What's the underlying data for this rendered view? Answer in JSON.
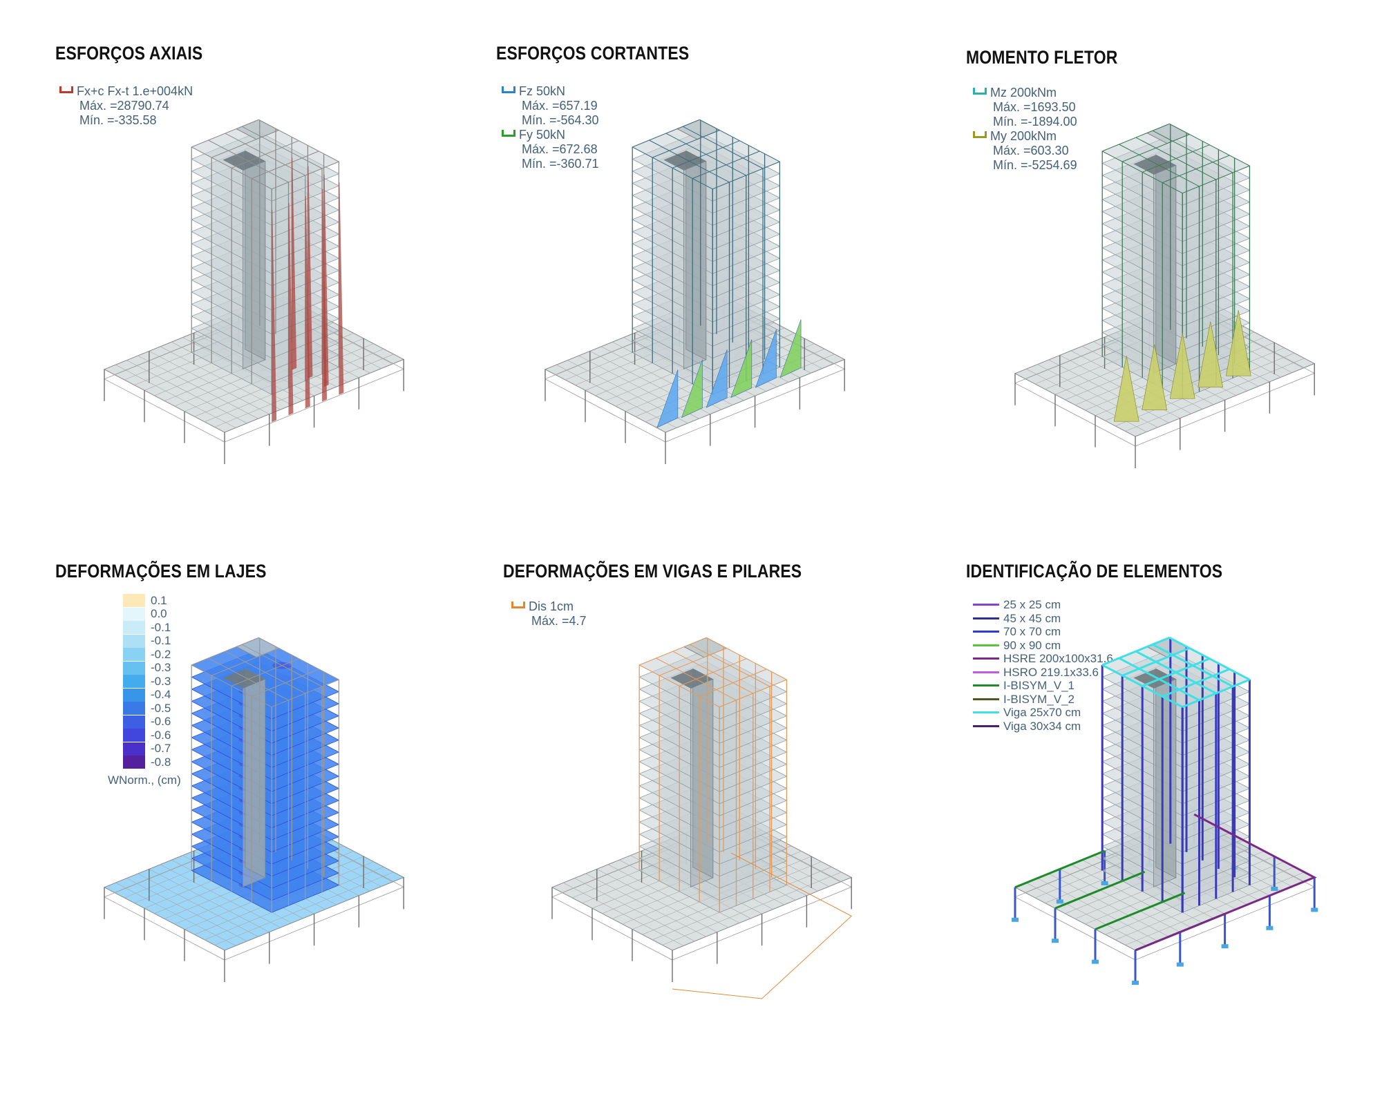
{
  "panels": {
    "axial": {
      "title": "ESFORÇOS AXIAIS",
      "legend": [
        {
          "swatch": "#c0392b",
          "label": "Fx+c Fx-t  1.e+004kN",
          "max": "Máx. =28790.74",
          "min": "Mín. =-335.58"
        }
      ],
      "diagram_color": "#a9443f"
    },
    "shear": {
      "title": "ESFORÇOS CORTANTES",
      "legend": [
        {
          "swatch": "#2d7fd0",
          "label": "Fz  50kN",
          "max": "Máx. =657.19",
          "min": "Mín. =-564.30"
        },
        {
          "swatch": "#2aa02a",
          "label": "Fy  50kN",
          "max": "Máx. =672.68",
          "min": "Mín. =-360.71"
        }
      ],
      "diagram_colors": [
        "#5aa7f0",
        "#7fd05a"
      ]
    },
    "moment": {
      "title": "MOMENTO FLETOR",
      "legend": [
        {
          "swatch": "#2bb0b0",
          "label": "Mz  200kNm",
          "max": "Máx. =1693.50",
          "min": "Mín. =-1894.00"
        },
        {
          "swatch": "#9a9a20",
          "label": "My  200kNm",
          "max": "Máx. =603.30",
          "min": "Mín. =-5254.69"
        }
      ],
      "diagram_colors": [
        "#c9cf6a",
        "#3fd0e0"
      ]
    },
    "slabs": {
      "title": "DEFORMAÇÕES EM LAJES",
      "scale": [
        {
          "value": "0.1",
          "color": "#fde9b8"
        },
        {
          "value": "0.0",
          "color": "#e3f6fb"
        },
        {
          "value": "-0.1",
          "color": "#c9ecf8"
        },
        {
          "value": "-0.1",
          "color": "#aee0f5"
        },
        {
          "value": "-0.2",
          "color": "#8ad2f3"
        },
        {
          "value": "-0.3",
          "color": "#66c1f0"
        },
        {
          "value": "-0.3",
          "color": "#44acec"
        },
        {
          "value": "-0.4",
          "color": "#3896e8"
        },
        {
          "value": "-0.5",
          "color": "#3a7ae6"
        },
        {
          "value": "-0.6",
          "color": "#3d5fe4"
        },
        {
          "value": "-0.6",
          "color": "#4146dc"
        },
        {
          "value": "-0.7",
          "color": "#4a2fc8"
        },
        {
          "value": "-0.8",
          "color": "#55209e"
        }
      ],
      "unit": "WNorm., (cm)"
    },
    "displacement": {
      "title": "DEFORMAÇÕES EM VIGAS E PILARES",
      "legend": [
        {
          "swatch": "#e8842a",
          "label": "Dis  1cm",
          "max": "Máx. =4.7",
          "min": ""
        }
      ],
      "diagram_color": "#e08a3c"
    },
    "elements": {
      "title": "IDENTIFICAÇÃO DE ELEMENTOS",
      "items": [
        {
          "label": "25 x 25 cm",
          "color": "#8a3fd9"
        },
        {
          "label": "45 x 45 cm",
          "color": "#2e2f8f"
        },
        {
          "label": "70 x 70 cm",
          "color": "#2f3bd6"
        },
        {
          "label": "90 x 90 cm",
          "color": "#5bc43a"
        },
        {
          "label": "HSRE 200x100x31.6",
          "color": "#7a2a86"
        },
        {
          "label": "HSRO 219.1x33.6",
          "color": "#c05ae6"
        },
        {
          "label": "I-BISYM_V_1",
          "color": "#1f8a2a"
        },
        {
          "label": "I-BISYM_V_2",
          "color": "#4a5a1a"
        },
        {
          "label": "Viga 25x70 cm",
          "color": "#3fe0e6"
        },
        {
          "label": "Viga 30x34 cm",
          "color": "#4a1f6a"
        }
      ]
    }
  }
}
